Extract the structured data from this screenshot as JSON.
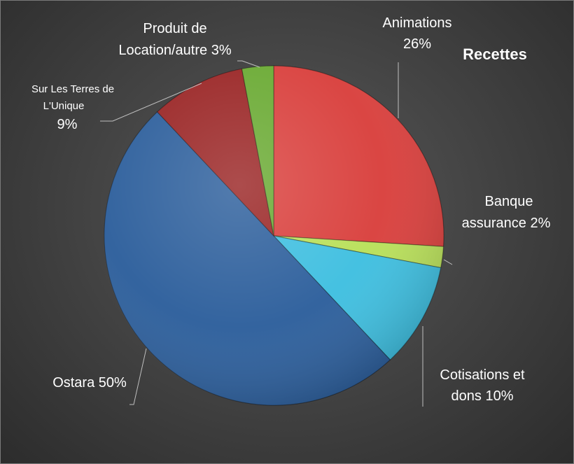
{
  "chart_data": {
    "type": "pie",
    "title": "Recettes",
    "slices": [
      {
        "name": "Animations",
        "value": 26,
        "percent_label": "26%",
        "color": "#d9403d"
      },
      {
        "name": "Banque assurance",
        "value": 2,
        "percent_label": "2%",
        "color": "#b9e05a"
      },
      {
        "name": "Cotisations et dons",
        "value": 10,
        "percent_label": "10%",
        "color": "#3fbfe0"
      },
      {
        "name": "Ostara",
        "value": 50,
        "percent_label": "50%",
        "color": "#2d5f9c"
      },
      {
        "name": "Sur Les Terres de L'Unique",
        "value": 9,
        "percent_label": "9%",
        "color": "#9a2525"
      },
      {
        "name": "Produit de Location/autre",
        "value": 3,
        "percent_label": "3%",
        "color": "#6aaa33"
      }
    ],
    "labels": {
      "animations_line1": "Animations",
      "animations_line2": "26%",
      "banque_line1": "Banque",
      "banque_line2": "assurance 2%",
      "cotisations_line1": "Cotisations et",
      "cotisations_line2": "dons 10%",
      "ostara": "Ostara 50%",
      "terres_line1": "Sur Les Terres de",
      "terres_line2": "L'Unique",
      "terres_line3": "9%",
      "produit_line1": "Produit de",
      "produit_line2": "Location/autre 3%"
    },
    "legend": "none",
    "label_style": "outside with leader lines"
  }
}
